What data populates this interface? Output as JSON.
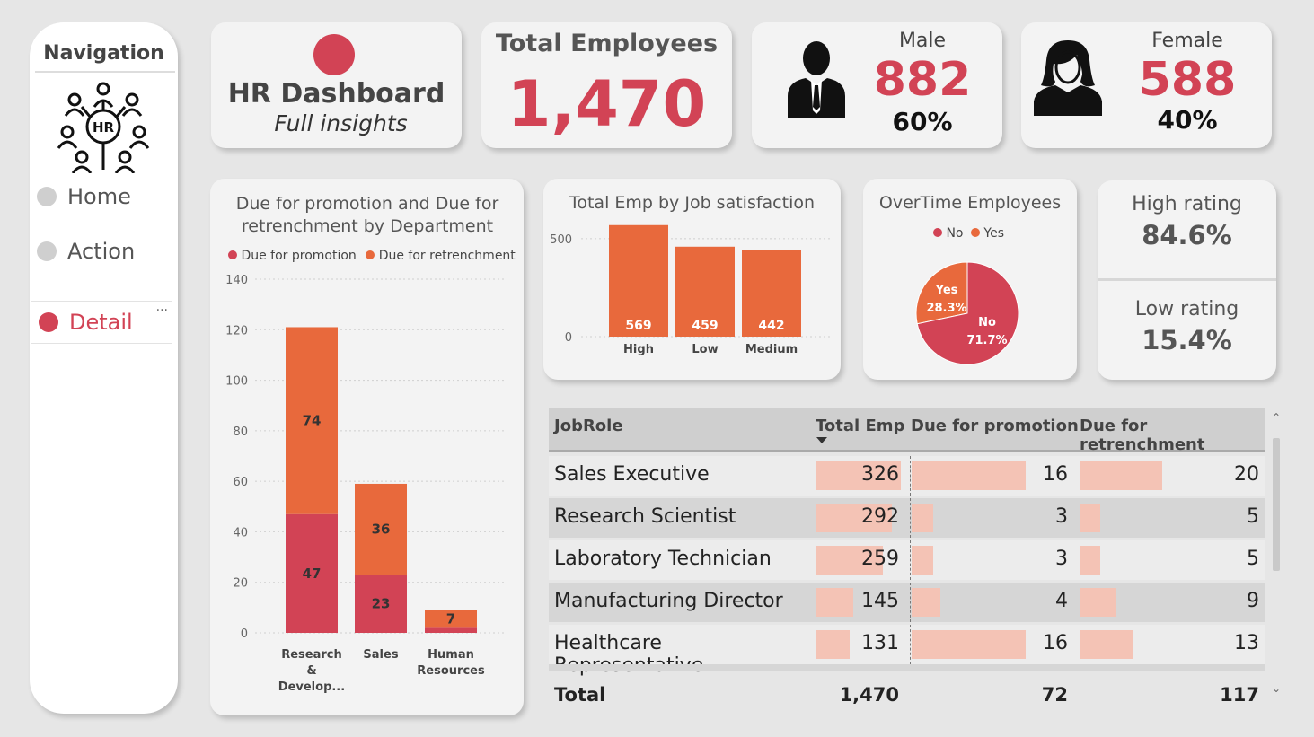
{
  "nav": {
    "title": "Navigation",
    "items": [
      {
        "label": "Home",
        "active": false
      },
      {
        "label": "Action",
        "active": false
      },
      {
        "label": "Detail",
        "active": true
      }
    ],
    "more": "···"
  },
  "header": {
    "title": "HR Dashboard",
    "subtitle": "Full insights"
  },
  "kpi": {
    "total_label": "Total Employees",
    "total_value": "1,470",
    "male_label": "Male",
    "male_value": "882",
    "male_pct": "60%",
    "female_label": "Female",
    "female_value": "588",
    "female_pct": "40%",
    "high_rating_label": "High rating",
    "high_rating_value": "84.6%",
    "low_rating_label": "Low rating",
    "low_rating_value": "15.4%"
  },
  "colors": {
    "red": "#d24355",
    "orange": "#e8693c",
    "bar_light": "#f4c3b5"
  },
  "chart_data": [
    {
      "type": "bar",
      "stacked": true,
      "title": "Due for promotion and Due for retrenchment by Department",
      "categories": [
        "Research & Develop...",
        "Sales",
        "Human Resources"
      ],
      "series": [
        {
          "name": "Due for promotion",
          "values": [
            47,
            23,
            2
          ]
        },
        {
          "name": "Due for retrenchment",
          "values": [
            74,
            36,
            7
          ]
        }
      ],
      "data_labels": [
        [
          "47",
          "23",
          ""
        ],
        [
          "74",
          "36",
          "7"
        ]
      ],
      "yticks": [
        "0",
        "20",
        "40",
        "60",
        "80",
        "100",
        "120",
        "140"
      ],
      "ylim": [
        0,
        140
      ],
      "legend": "top",
      "grid": true
    },
    {
      "type": "bar",
      "title": "Total Emp by Job satisfaction",
      "categories": [
        "High",
        "Low",
        "Medium"
      ],
      "values": [
        569,
        459,
        442
      ],
      "labels": [
        "569",
        "459",
        "442"
      ],
      "yticks": [
        "0",
        "500"
      ],
      "ylim": [
        0,
        600
      ],
      "grid": true
    },
    {
      "type": "pie",
      "title": "OverTime Employees",
      "legend": [
        "No",
        "Yes"
      ],
      "slices": [
        {
          "name": "No",
          "value": 71.7,
          "pct": "71.7%"
        },
        {
          "name": "Yes",
          "value": 28.3,
          "pct": "28.3%"
        }
      ]
    }
  ],
  "table": {
    "headers": [
      "JobRole",
      "Total Emp",
      "Due for promotion",
      "Due for retrenchment"
    ],
    "rows": [
      {
        "role": "Sales Executive",
        "total": "326",
        "promo": "16",
        "retr": "20",
        "t": 326,
        "p": 16,
        "r": 20
      },
      {
        "role": "Research Scientist",
        "total": "292",
        "promo": "3",
        "retr": "5",
        "t": 292,
        "p": 3,
        "r": 5
      },
      {
        "role": "Laboratory Technician",
        "total": "259",
        "promo": "3",
        "retr": "5",
        "t": 259,
        "p": 3,
        "r": 5
      },
      {
        "role": "Manufacturing Director",
        "total": "145",
        "promo": "4",
        "retr": "9",
        "t": 145,
        "p": 4,
        "r": 9
      },
      {
        "role": "Healthcare Representative",
        "total": "131",
        "promo": "16",
        "retr": "13",
        "t": 131,
        "p": 16,
        "r": 13
      }
    ],
    "totals": {
      "label": "Total",
      "total": "1,470",
      "promo": "72",
      "retr": "117"
    }
  }
}
